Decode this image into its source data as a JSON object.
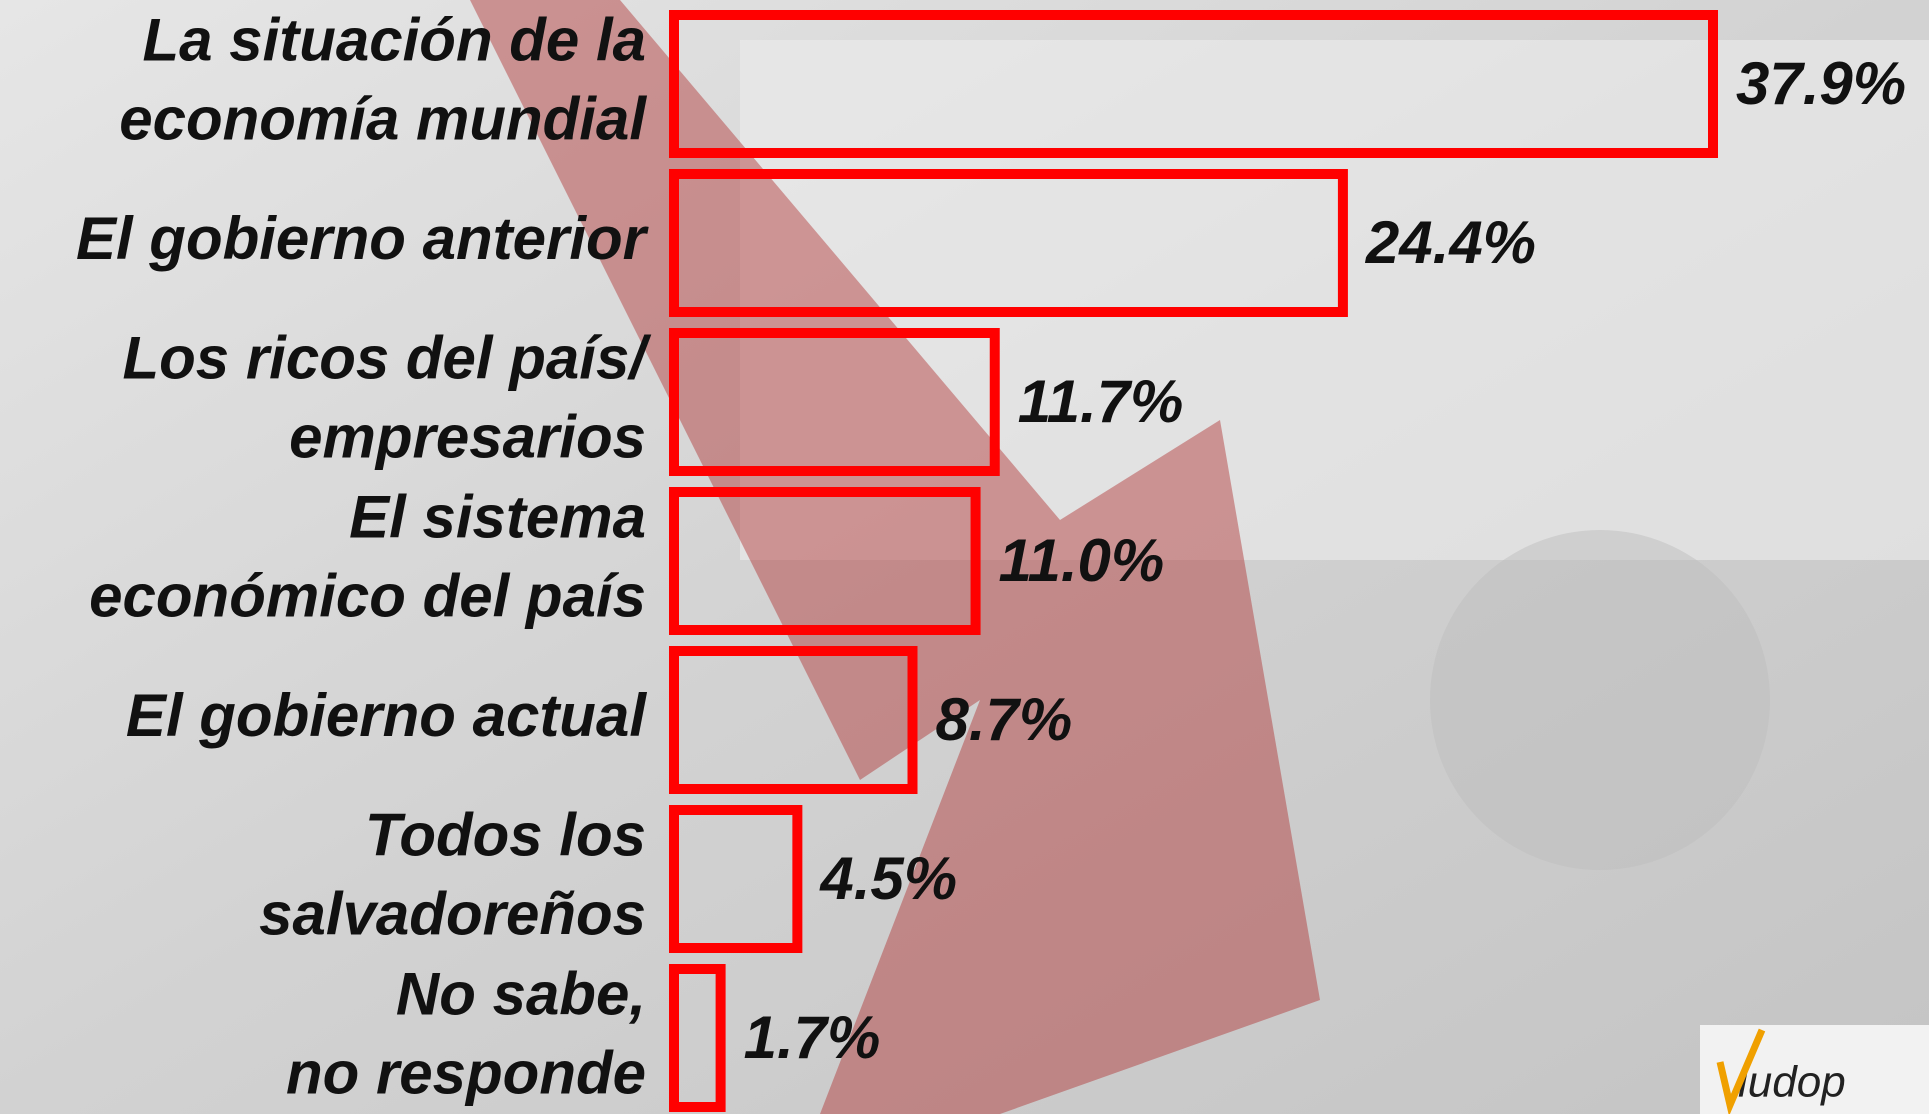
{
  "chart_data": {
    "type": "hbar",
    "categories": [
      [
        "La situación de la",
        "economía mundial"
      ],
      [
        "El gobierno anterior"
      ],
      [
        "Los ricos del país/",
        "empresarios"
      ],
      [
        "El sistema",
        "económico del país"
      ],
      [
        "El gobierno actual"
      ],
      [
        "Todos los",
        "salvadoreños"
      ],
      [
        "No sabe,",
        "no responde"
      ]
    ],
    "values": [
      37.9,
      24.4,
      11.7,
      11.0,
      8.7,
      4.5,
      1.7
    ],
    "value_labels": [
      "37.9%",
      "24.4%",
      "11.7%",
      "11.0%",
      "8.7%",
      "4.5%",
      "1.7%"
    ],
    "color": "#ff0000",
    "logo": "iudop"
  }
}
